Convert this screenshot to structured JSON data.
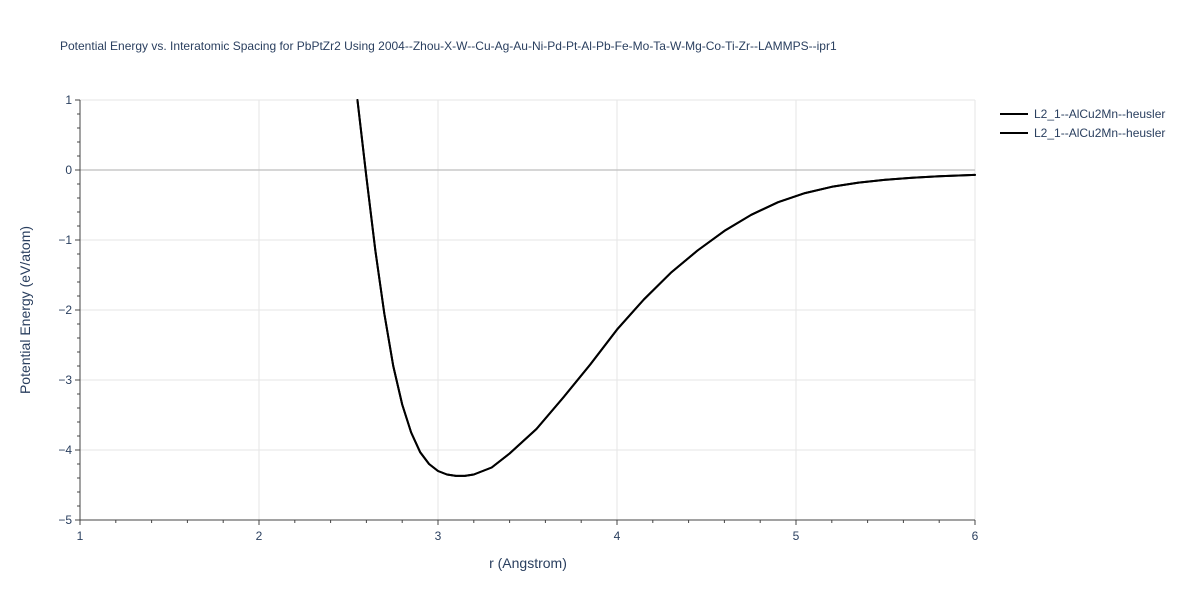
{
  "chart_data": {
    "type": "line",
    "title": "Potential Energy vs. Interatomic Spacing for PbPtZr2 Using 2004--Zhou-X-W--Cu-Ag-Au-Ni-Pd-Pt-Al-Pb-Fe-Mo-Ta-W-Mg-Co-Ti-Zr--LAMMPS--ipr1",
    "xlabel": "r (Angstrom)",
    "ylabel": "Potential Energy (eV/atom)",
    "xlim": [
      1,
      6
    ],
    "ylim": [
      -5,
      1
    ],
    "x_ticks": [
      1,
      2,
      3,
      4,
      5,
      6
    ],
    "y_ticks": [
      1,
      0,
      -1,
      -2,
      -3,
      -4,
      -5
    ],
    "x_tick_labels": [
      "1",
      "2",
      "3",
      "4",
      "5",
      "6"
    ],
    "y_tick_labels": [
      "1",
      "0",
      "−1",
      "−2",
      "−3",
      "−4",
      "−5"
    ],
    "grid": true,
    "legend_position": "top-right",
    "series": [
      {
        "name": "L2_1--AlCu2Mn--heusler",
        "color": "#000000",
        "x": [
          2.55,
          2.6,
          2.65,
          2.7,
          2.75,
          2.8,
          2.85,
          2.9,
          2.95,
          3.0,
          3.05,
          3.1,
          3.15,
          3.2,
          3.3,
          3.4,
          3.55,
          3.7,
          3.85,
          4.0,
          4.15,
          4.3,
          4.45,
          4.6,
          4.75,
          4.9,
          5.05,
          5.2,
          5.35,
          5.5,
          5.65,
          5.8,
          6.0
        ],
        "y": [
          1.0,
          -0.1,
          -1.15,
          -2.05,
          -2.8,
          -3.35,
          -3.75,
          -4.03,
          -4.2,
          -4.3,
          -4.35,
          -4.37,
          -4.37,
          -4.35,
          -4.25,
          -4.05,
          -3.7,
          -3.25,
          -2.78,
          -2.28,
          -1.85,
          -1.47,
          -1.15,
          -0.87,
          -0.64,
          -0.46,
          -0.33,
          -0.24,
          -0.18,
          -0.14,
          -0.11,
          -0.09,
          -0.07
        ]
      },
      {
        "name": "L2_1--AlCu2Mn--heusler",
        "color": "#000000",
        "x": [
          2.55,
          2.6,
          2.65,
          2.7,
          2.75,
          2.8,
          2.85,
          2.9,
          2.95,
          3.0,
          3.05,
          3.1,
          3.15,
          3.2,
          3.3,
          3.4,
          3.55,
          3.7,
          3.85,
          4.0,
          4.15,
          4.3,
          4.45,
          4.6,
          4.75,
          4.9,
          5.05,
          5.2,
          5.35,
          5.5,
          5.65,
          5.8,
          6.0
        ],
        "y": [
          1.0,
          -0.1,
          -1.15,
          -2.05,
          -2.8,
          -3.35,
          -3.75,
          -4.03,
          -4.2,
          -4.3,
          -4.35,
          -4.37,
          -4.37,
          -4.35,
          -4.25,
          -4.05,
          -3.7,
          -3.25,
          -2.78,
          -2.28,
          -1.85,
          -1.47,
          -1.15,
          -0.87,
          -0.64,
          -0.46,
          -0.33,
          -0.24,
          -0.18,
          -0.14,
          -0.11,
          -0.09,
          -0.07
        ]
      }
    ]
  }
}
